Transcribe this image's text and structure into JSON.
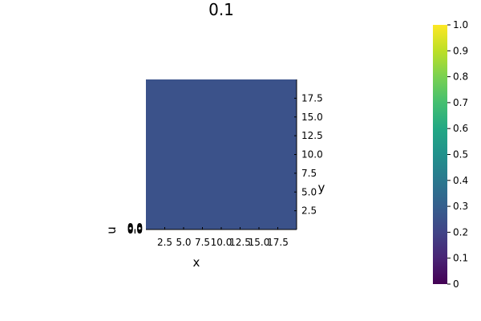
{
  "chart_data": {
    "type": "heatmap",
    "title": "0.1",
    "xlabel": "x",
    "ylabel": "y",
    "zlabel": "u",
    "x_ticks": [
      "2.5",
      "5.0",
      "7.5",
      "10.0",
      "12.5",
      "15.0",
      "17.5"
    ],
    "x_tick_values": [
      2.5,
      5.0,
      7.5,
      10.0,
      12.5,
      15.0,
      17.5
    ],
    "y_ticks": [
      "2.5",
      "5.0",
      "7.5",
      "10.0",
      "12.5",
      "15.0",
      "17.5"
    ],
    "y_tick_values": [
      2.5,
      5.0,
      7.5,
      10.0,
      12.5,
      15.0,
      17.5
    ],
    "z_ticks": [
      "0.0",
      "0.0",
      "0.0",
      "0.0",
      "0.0"
    ],
    "xlim": [
      0,
      20
    ],
    "ylim": [
      0,
      20
    ],
    "colorbar": {
      "colormap": "viridis",
      "clim": [
        0,
        1
      ],
      "ticks": [
        "0",
        "0.1",
        "0.2",
        "0.3",
        "0.4",
        "0.5",
        "0.6",
        "0.7",
        "0.8",
        "0.9",
        "1.0"
      ],
      "tick_values": [
        0,
        0.1,
        0.2,
        0.3,
        0.4,
        0.5,
        0.6,
        0.7,
        0.8,
        0.9,
        1.0
      ]
    },
    "field_value": 0.25,
    "grid": false
  }
}
